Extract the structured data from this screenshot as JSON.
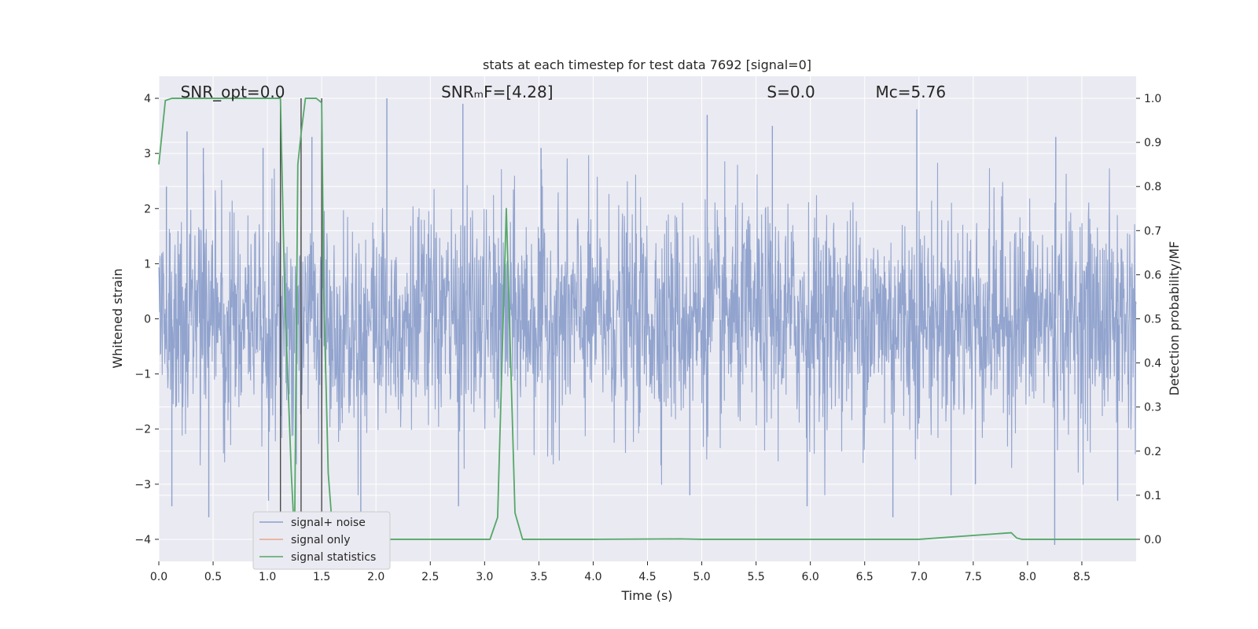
{
  "chart_data": {
    "type": "line",
    "title": "stats at each timestep for test data 7692 [signal=0]",
    "xlabel": "Time (s)",
    "ylabel": "Whitened strain",
    "y2label": "Detection probability/MF",
    "xlim": [
      0.0,
      9.0
    ],
    "ylim": [
      -4.4,
      4.4
    ],
    "y2lim": [
      -0.05,
      1.05
    ],
    "xticks": [
      "0.0",
      "0.5",
      "1.0",
      "1.5",
      "2.0",
      "2.5",
      "3.0",
      "3.5",
      "4.0",
      "4.5",
      "5.0",
      "5.5",
      "6.0",
      "6.5",
      "7.0",
      "7.5",
      "8.0",
      "8.5"
    ],
    "xtick_values": [
      0.0,
      0.5,
      1.0,
      1.5,
      2.0,
      2.5,
      3.0,
      3.5,
      4.0,
      4.5,
      5.0,
      5.5,
      6.0,
      6.5,
      7.0,
      7.5,
      8.0,
      8.5
    ],
    "yticks": [
      "4",
      "3",
      "2",
      "1",
      "0",
      "−1",
      "−2",
      "−3",
      "−4"
    ],
    "ytick_values": [
      4,
      3,
      2,
      1,
      0,
      -1,
      -2,
      -3,
      -4
    ],
    "y2ticks": [
      "1.0",
      "0.9",
      "0.8",
      "0.7",
      "0.6",
      "0.5",
      "0.4",
      "0.3",
      "0.2",
      "0.1",
      "0.0"
    ],
    "y2tick_values": [
      1.0,
      0.9,
      0.8,
      0.7,
      0.6,
      0.5,
      0.4,
      0.3,
      0.2,
      0.1,
      0.0
    ],
    "grid": true,
    "legend_placement": "lower-left",
    "annotations": [
      {
        "text": "SNR_opt=0.0",
        "x": 0.2,
        "y": 4.1
      },
      {
        "text": "SNRₘF=[4.28]",
        "x": 2.6,
        "y": 4.1
      },
      {
        "text": "S=0.0",
        "x": 5.6,
        "y": 4.1
      },
      {
        "text": "Mᴄ=5.76",
        "x": 6.6,
        "y": 4.1
      }
    ],
    "vertical_lines": [
      1.12,
      1.31,
      1.5
    ],
    "series": [
      {
        "name": "signal+ noise",
        "color": "#8da0cb",
        "axis": "left",
        "style": "noise",
        "noise_sigma": 1.0,
        "peaks": [
          {
            "x": 0.07,
            "y": 2.4
          },
          {
            "x": 0.12,
            "y": -3.4
          },
          {
            "x": 0.26,
            "y": 3.4
          },
          {
            "x": 0.41,
            "y": 3.1
          },
          {
            "x": 0.46,
            "y": -3.6
          },
          {
            "x": 0.96,
            "y": 3.1
          },
          {
            "x": 1.01,
            "y": -3.3
          },
          {
            "x": 1.41,
            "y": 3.3
          },
          {
            "x": 1.86,
            "y": -3.8
          },
          {
            "x": 2.1,
            "y": 4.0
          },
          {
            "x": 2.76,
            "y": -3.4
          },
          {
            "x": 2.8,
            "y": 3.9
          },
          {
            "x": 3.52,
            "y": 3.1
          },
          {
            "x": 4.89,
            "y": -3.2
          },
          {
            "x": 5.05,
            "y": 3.7
          },
          {
            "x": 5.65,
            "y": 3.5
          },
          {
            "x": 5.97,
            "y": -3.4
          },
          {
            "x": 6.76,
            "y": -3.6
          },
          {
            "x": 6.98,
            "y": 3.8
          },
          {
            "x": 7.52,
            "y": -3.0
          },
          {
            "x": 8.25,
            "y": -4.1
          },
          {
            "x": 8.26,
            "y": 3.3
          },
          {
            "x": 8.83,
            "y": -3.3
          }
        ]
      },
      {
        "name": "signal only",
        "color": "#e8a58b",
        "axis": "left",
        "x": [],
        "y": []
      },
      {
        "name": "signal statistics",
        "color": "#55a868",
        "axis": "right",
        "x": [
          0.0,
          0.06,
          0.12,
          0.6,
          1.1,
          1.12,
          1.16,
          1.22,
          1.25,
          1.28,
          1.31,
          1.35,
          1.4,
          1.45,
          1.5,
          1.52,
          1.56,
          1.6,
          1.65,
          1.75,
          2.0,
          2.5,
          3.05,
          3.12,
          3.2,
          3.28,
          3.35,
          3.5,
          4.0,
          4.8,
          5.0,
          6.0,
          7.0,
          7.85,
          7.9,
          7.95,
          8.0,
          8.5,
          9.0
        ],
        "y": [
          0.85,
          0.995,
          1.0,
          1.0,
          1.0,
          1.0,
          0.55,
          0.15,
          0.0,
          0.85,
          0.92,
          1.0,
          1.0,
          1.0,
          0.99,
          0.55,
          0.15,
          0.02,
          0.0,
          0.0,
          0.0,
          0.0,
          0.0,
          0.05,
          0.75,
          0.06,
          0.0,
          0.0,
          0.0,
          0.001,
          0.0,
          0.0,
          0.0,
          0.015,
          0.003,
          0.0,
          0.0,
          0.0,
          0.0
        ]
      }
    ]
  }
}
